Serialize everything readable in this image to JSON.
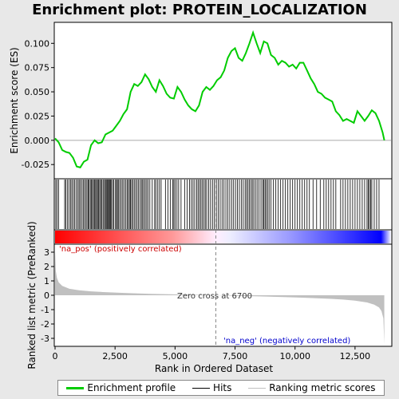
{
  "chart_data": {
    "type": "line",
    "title": "Enrichment plot: PROTEIN_LOCALIZATION",
    "top_panel": {
      "ylabel": "Enrichment score (ES)",
      "ylim": [
        -0.038,
        0.12
      ],
      "yticks": [
        -0.025,
        0.0,
        0.025,
        0.05,
        0.075,
        0.1
      ],
      "ytick_labels": [
        "-0.025",
        "0.000",
        "0.025",
        "0.050",
        "0.075",
        "0.100"
      ],
      "series": [
        {
          "name": "Enrichment profile",
          "color": "#00cc00",
          "x": [
            0,
            150,
            300,
            450,
            600,
            750,
            900,
            1050,
            1200,
            1350,
            1500,
            1650,
            1800,
            1950,
            2100,
            2250,
            2400,
            2550,
            2700,
            2850,
            3000,
            3150,
            3300,
            3450,
            3600,
            3750,
            3900,
            4050,
            4200,
            4350,
            4500,
            4650,
            4800,
            4950,
            5100,
            5250,
            5400,
            5550,
            5700,
            5850,
            6000,
            6150,
            6300,
            6450,
            6600,
            6750,
            6900,
            7050,
            7200,
            7350,
            7500,
            7650,
            7800,
            7950,
            8100,
            8250,
            8400,
            8550,
            8700,
            8850,
            9000,
            9150,
            9300,
            9450,
            9600,
            9750,
            9900,
            10050,
            10200,
            10350,
            10500,
            10650,
            10800,
            10950,
            11100,
            11250,
            11400,
            11550,
            11700,
            11850,
            12000,
            12150,
            12300,
            12450,
            12600,
            12750,
            12900,
            13050,
            13200,
            13350,
            13500,
            13650,
            13720
          ],
          "y": [
            0.002,
            -0.002,
            -0.01,
            -0.012,
            -0.013,
            -0.018,
            -0.027,
            -0.028,
            -0.022,
            -0.02,
            -0.005,
            0.0,
            -0.003,
            -0.002,
            0.006,
            0.008,
            0.01,
            0.015,
            0.02,
            0.027,
            0.032,
            0.05,
            0.058,
            0.056,
            0.06,
            0.068,
            0.063,
            0.055,
            0.05,
            0.062,
            0.056,
            0.048,
            0.044,
            0.043,
            0.055,
            0.05,
            0.042,
            0.036,
            0.032,
            0.03,
            0.036,
            0.05,
            0.055,
            0.052,
            0.056,
            0.062,
            0.065,
            0.072,
            0.085,
            0.092,
            0.095,
            0.085,
            0.082,
            0.09,
            0.1,
            0.111,
            0.1,
            0.09,
            0.102,
            0.1,
            0.088,
            0.085,
            0.078,
            0.082,
            0.08,
            0.076,
            0.078,
            0.074,
            0.08,
            0.08,
            0.072,
            0.064,
            0.058,
            0.05,
            0.048,
            0.044,
            0.042,
            0.04,
            0.03,
            0.026,
            0.02,
            0.022,
            0.02,
            0.018,
            0.03,
            0.025,
            0.02,
            0.025,
            0.031,
            0.028,
            0.02,
            0.008,
            0.0
          ]
        }
      ]
    },
    "hits": {
      "name": "Hits",
      "color": "#000000",
      "positions": [
        30,
        80,
        150,
        400,
        450,
        520,
        580,
        650,
        700,
        760,
        820,
        880,
        950,
        1000,
        1050,
        1110,
        1170,
        1220,
        1280,
        1330,
        1380,
        1420,
        1470,
        1510,
        1560,
        1600,
        1650,
        1690,
        1730,
        1770,
        1810,
        1860,
        1900,
        1950,
        2000,
        2050,
        2100,
        2130,
        2170,
        2200,
        2240,
        2270,
        2310,
        2350,
        2400,
        2450,
        2520,
        2560,
        2600,
        2650,
        2700,
        2760,
        2820,
        2880,
        2940,
        3000,
        3050,
        3100,
        3140,
        3190,
        3240,
        3300,
        3360,
        3420,
        3480,
        3540,
        3600,
        3650,
        3700,
        3760,
        3820,
        3880,
        3950,
        4050,
        4150,
        4200,
        4280,
        4350,
        4420,
        4600,
        4700,
        4800,
        4900,
        4950,
        5000,
        5080,
        5150,
        5250,
        5400,
        5500,
        5600,
        5680,
        5750,
        5820,
        5900,
        5960,
        6020,
        6080,
        6140,
        6200,
        6260,
        6320,
        6400,
        6480,
        6560,
        6640,
        6720,
        6800,
        6880,
        6960,
        7040,
        7120,
        7200,
        7280,
        7360,
        7440,
        7520,
        7600,
        7680,
        7760,
        7840,
        7920,
        7980,
        8040,
        8100,
        8160,
        8220,
        8280,
        8350,
        8420,
        8500,
        8580,
        8650,
        8700,
        8750,
        8800,
        8860,
        8920,
        9000,
        9100,
        9200,
        9300,
        9400,
        9500,
        9600,
        9700,
        9800,
        9900,
        10000,
        10100,
        10200,
        10300,
        10400,
        10500,
        10600,
        10750,
        10900,
        11050,
        11200,
        11300,
        11400,
        11500,
        11600,
        11700,
        11900,
        12000,
        12100,
        12200,
        12300,
        12400,
        12500,
        12600,
        12700,
        12800,
        12900,
        13000,
        13050,
        13100,
        13150,
        13200,
        13300,
        13400,
        13500
      ]
    },
    "bottom_panel": {
      "name": "Ranking metric scores",
      "color": "#c0c0c0",
      "ylabel": "Ranked list metric (PreRanked)",
      "ylim": [
        -3.5,
        3.5
      ],
      "yticks": [
        -3,
        -2,
        -1,
        0,
        1,
        2,
        3
      ],
      "ytick_labels": [
        "-3",
        "-2",
        "-1",
        "0",
        "1",
        "2",
        "3"
      ],
      "x": [
        0,
        30,
        80,
        150,
        300,
        600,
        1000,
        1500,
        2000,
        3000,
        4000,
        5000,
        6000,
        6700,
        7500,
        8500,
        9500,
        10500,
        11500,
        12000,
        12500,
        13000,
        13300,
        13500,
        13600,
        13680,
        13720
      ],
      "y": [
        3.1,
        1.7,
        1.2,
        0.9,
        0.65,
        0.45,
        0.35,
        0.27,
        0.22,
        0.15,
        0.1,
        0.06,
        0.03,
        0.0,
        -0.04,
        -0.08,
        -0.13,
        -0.18,
        -0.25,
        -0.3,
        -0.38,
        -0.5,
        -0.65,
        -0.85,
        -1.1,
        -1.6,
        -3.4
      ],
      "pos_label": "'na_pos' (positively correlated)",
      "neg_label": "'na_neg' (negatively correlated)",
      "zero_cross_label": "Zero cross at 6700",
      "zero_cross": 6700
    },
    "xlabel": "Rank in Ordered Dataset",
    "xlim": [
      0,
      14000
    ],
    "xticks": [
      0,
      2500,
      5000,
      7500,
      10000,
      12500
    ],
    "xtick_labels": [
      "0",
      "2,500",
      "5,000",
      "7,500",
      "10,000",
      "12,500"
    ],
    "legend": {
      "placement": "bottom",
      "entries": [
        {
          "label": "Enrichment profile",
          "color": "#00cc00"
        },
        {
          "label": "Hits",
          "color": "#000000"
        },
        {
          "label": "Ranking metric scores",
          "color": "#c0c0c0"
        }
      ]
    }
  }
}
